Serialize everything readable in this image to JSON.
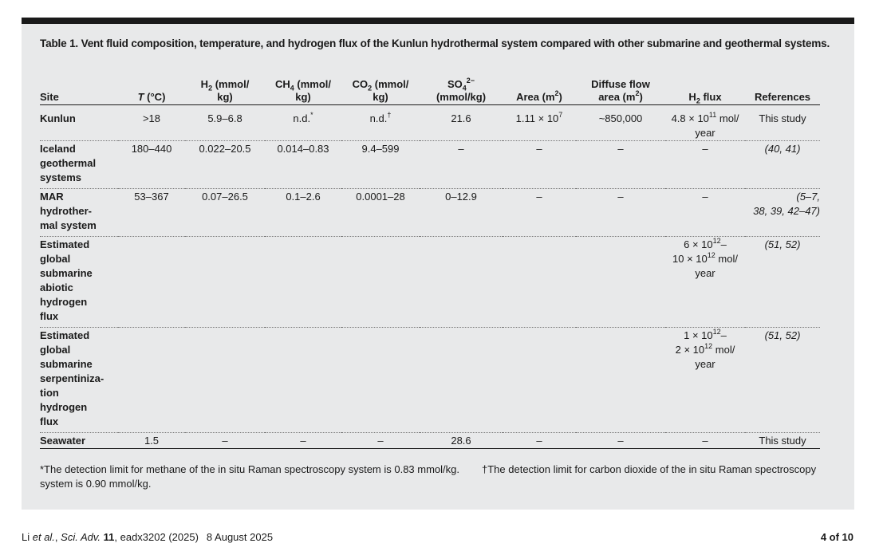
{
  "caption": "Table 1. Vent fluid composition, temperature, and hydrogen flux of the Kunlun hydrothermal system compared with other submarine and geothermal systems.",
  "columns": {
    "site": "Site",
    "temp_var": "T",
    "temp_unit": " (°C)",
    "h2_a": "H",
    "h2_sub": "2",
    "h2_b": " (mmol/",
    "h2_c": "kg)",
    "ch4_a": "CH",
    "ch4_sub": "4",
    "ch4_b": " (mmol/",
    "ch4_c": "kg)",
    "co2_a": "CO",
    "co2_sub": "2",
    "co2_b": " (mmol/",
    "co2_c": "kg)",
    "so4_a": "SO",
    "so4_sub": "4",
    "so4_sup": "2−",
    "so4_b": "(mmol/kg)",
    "area_a": "Area (m",
    "area_sup": "2",
    "area_b": ")",
    "diffuse_a": "Diffuse flow",
    "diffuse_b": "area (m",
    "diffuse_sup": "2",
    "diffuse_c": ")",
    "flux_a": "H",
    "flux_sub": "2",
    "flux_b": " flux",
    "refs": "References"
  },
  "rows": {
    "kunlun": {
      "site": "Kunlun",
      "temp": ">18",
      "h2": "5.9–6.8",
      "ch4": "n.d.",
      "ch4_mark": "*",
      "co2": "n.d.",
      "co2_mark": "†",
      "so4": "21.6",
      "area_a": "1.11 × 10",
      "area_exp": "7",
      "diffuse": "~850,000",
      "flux_a": "4.8 × 10",
      "flux_exp": "11",
      "flux_b": " mol/",
      "flux_c": "year",
      "refs": "This study"
    },
    "iceland": {
      "site_l1": "Iceland",
      "site_l2": "geothermal",
      "site_l3": "systems",
      "temp": "180–440",
      "h2": "0.022–20.5",
      "ch4": "0.014–0.83",
      "co2": "9.4–599",
      "so4": "–",
      "area": "–",
      "diffuse": "–",
      "flux": "–",
      "refs": "(40, 41)"
    },
    "mar": {
      "site_l1": "MAR",
      "site_l2": "hydrother-",
      "site_l3": "mal system",
      "temp": "53–367",
      "h2": "0.07–26.5",
      "ch4": "0.1–2.6",
      "co2": "0.0001–28",
      "so4": "0–12.9",
      "area": "–",
      "diffuse": "–",
      "flux": "–",
      "refs_l1": "(5–7,",
      "refs_l2": "38, 39, 42–47)"
    },
    "abiotic": {
      "site_l1": "Estimated",
      "site_l2": "global",
      "site_l3": "submarine",
      "site_l4": "abiotic",
      "site_l5": "hydrogen",
      "site_l6": "flux",
      "flux_a": "6 × 10",
      "flux_exp1": "12",
      "flux_b": "–",
      "flux_c": "10 × 10",
      "flux_exp2": "12",
      "flux_d": " mol/",
      "flux_e": "year",
      "refs": "(51, 52)"
    },
    "serp": {
      "site_l1": "Estimated",
      "site_l2": "global",
      "site_l3": "submarine",
      "site_l4": "serpentiniza-",
      "site_l5": "tion",
      "site_l6": "hydrogen",
      "site_l7": "flux",
      "flux_a": "1 × 10",
      "flux_exp1": "12",
      "flux_b": "–",
      "flux_c": "2 × 10",
      "flux_exp2": "12",
      "flux_d": " mol/",
      "flux_e": "year",
      "refs": "(51, 52)"
    },
    "seawater": {
      "site": "Seawater",
      "temp": "1.5",
      "h2": "–",
      "ch4": "–",
      "co2": "–",
      "so4": "28.6",
      "area": "–",
      "diffuse": "–",
      "flux": "–",
      "refs": "This study"
    }
  },
  "footnotes": {
    "fn1": "*The detection limit for methane of the in situ Raman spectroscopy system is 0.83 mmol/kg.",
    "fn2": "†The detection limit for carbon dioxide of the in situ Raman spectroscopy system is 0.90 mmol/kg."
  },
  "footer": {
    "author": "Li ",
    "etal": "et al.",
    "journal": "Sci. Adv.",
    "volume": "11",
    "article": ", eadx3202 (2025)",
    "date": "8 August 2025",
    "page": "4 of 10"
  }
}
